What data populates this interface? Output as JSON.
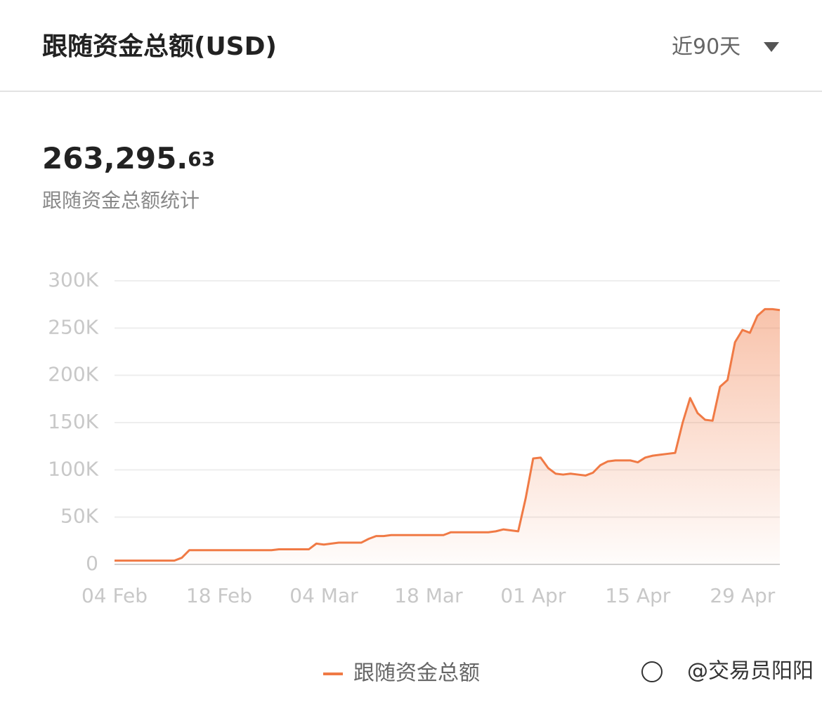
{
  "header": {
    "title": "跟随资金总额(USD)",
    "range_selector": "近90天"
  },
  "summary": {
    "total_main": "263,295.",
    "total_decimals": "63",
    "label": "跟随资金总额统计"
  },
  "watermark": "@交易员阳阳",
  "chart_data": {
    "type": "line",
    "categories": [
      "04 Feb",
      null,
      null,
      null,
      null,
      null,
      null,
      null,
      null,
      null,
      null,
      null,
      null,
      null,
      "18 Feb",
      null,
      null,
      null,
      null,
      null,
      null,
      null,
      null,
      null,
      null,
      null,
      null,
      null,
      "04 Mar",
      null,
      null,
      null,
      null,
      null,
      null,
      null,
      null,
      null,
      null,
      null,
      null,
      null,
      "18 Mar",
      null,
      null,
      null,
      null,
      null,
      null,
      null,
      null,
      null,
      null,
      null,
      null,
      null,
      "01 Apr",
      null,
      null,
      null,
      null,
      null,
      null,
      null,
      null,
      null,
      null,
      null,
      null,
      null,
      "15 Apr",
      null,
      null,
      null,
      null,
      null,
      null,
      null,
      null,
      null,
      null,
      null,
      null,
      null,
      "29 Apr",
      null,
      null,
      null,
      null,
      null
    ],
    "series": [
      {
        "name": "跟随资金总额",
        "color": "#f07a45",
        "values": [
          4000,
          4000,
          4000,
          4000,
          4000,
          4000,
          4000,
          4000,
          4000,
          7000,
          15000,
          15000,
          15000,
          15000,
          15000,
          15000,
          15000,
          15000,
          15000,
          15000,
          15000,
          15000,
          16000,
          16000,
          16000,
          16000,
          16000,
          22000,
          21000,
          22000,
          23000,
          23000,
          23000,
          23000,
          27000,
          30000,
          30000,
          31000,
          31000,
          31000,
          31000,
          31000,
          31000,
          31000,
          31000,
          34000,
          34000,
          34000,
          34000,
          34000,
          34000,
          35000,
          37000,
          36000,
          35000,
          70000,
          112000,
          113000,
          102000,
          96000,
          95000,
          96000,
          95000,
          94000,
          97000,
          105000,
          109000,
          110000,
          110000,
          110000,
          108000,
          113000,
          115000,
          116000,
          117000,
          118000,
          150000,
          176000,
          160000,
          153000,
          152000,
          188000,
          195000,
          235000,
          248000,
          245000,
          263000,
          270000,
          270000,
          269000
        ]
      }
    ],
    "ylim": [
      0,
      300000
    ],
    "yticks": [
      0,
      {
        "value": 50000,
        "label": "50K"
      },
      {
        "value": 100000,
        "label": "100K"
      },
      {
        "value": 150000,
        "label": "150K"
      },
      {
        "value": 200000,
        "label": "200K"
      },
      {
        "value": 250000,
        "label": "250K"
      },
      {
        "value": 300000,
        "label": "300K"
      }
    ],
    "grid": true,
    "legend": "bottom"
  }
}
